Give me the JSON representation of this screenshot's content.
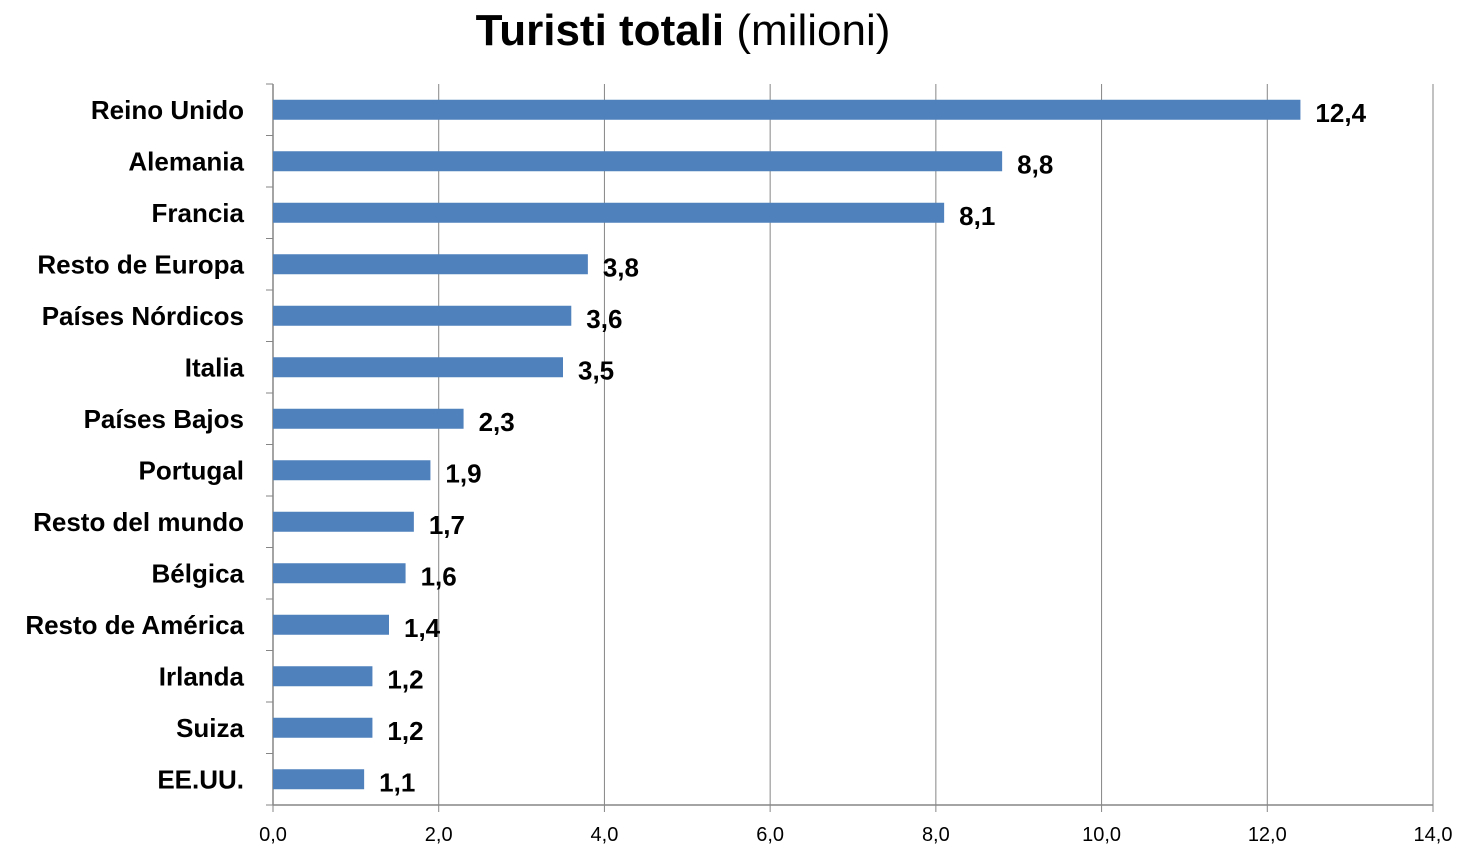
{
  "chart_data": {
    "type": "bar",
    "orientation": "horizontal",
    "title_bold": "Turisti totali",
    "title_rest": "(milioni)",
    "categories": [
      "Reino Unido",
      "Alemania",
      "Francia",
      "Resto de Europa",
      "Países Nórdicos",
      "Italia",
      "Países Bajos",
      "Portugal",
      "Resto del mundo",
      "Bélgica",
      "Resto de América",
      "Irlanda",
      "Suiza",
      "EE.UU."
    ],
    "values": [
      12.4,
      8.8,
      8.1,
      3.8,
      3.6,
      3.5,
      2.3,
      1.9,
      1.7,
      1.6,
      1.4,
      1.2,
      1.2,
      1.1
    ],
    "value_labels": [
      "12,4",
      "8,8",
      "8,1",
      "3,8",
      "3,6",
      "3,5",
      "2,3",
      "1,9",
      "1,7",
      "1,6",
      "1,4",
      "1,2",
      "1,2",
      "1,1"
    ],
    "xlim": [
      0,
      14
    ],
    "x_ticks": [
      0,
      2,
      4,
      6,
      8,
      10,
      12,
      14
    ],
    "x_tick_labels": [
      "0,0",
      "2,0",
      "4,0",
      "6,0",
      "8,0",
      "10,0",
      "12,0",
      "14,0"
    ],
    "grid": "vertical",
    "legend": "none",
    "colors": {
      "bar": "#4f81bd",
      "grid": "#868686",
      "axis": "#868686"
    }
  }
}
